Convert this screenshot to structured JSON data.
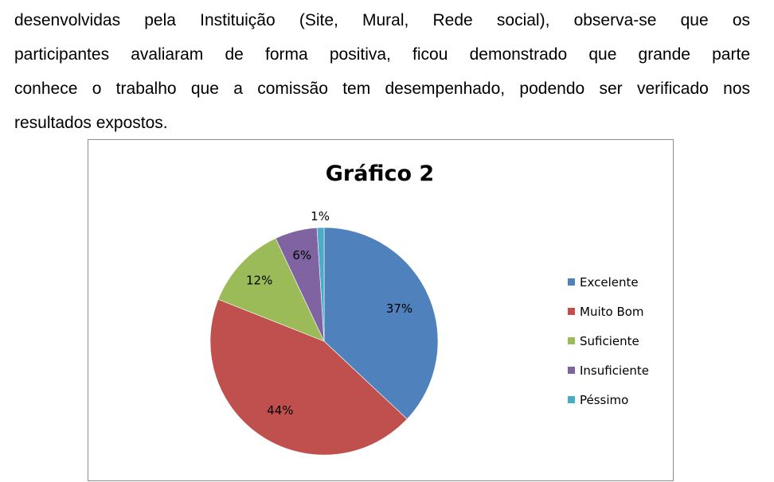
{
  "paragraph": {
    "lines": [
      "desenvolvidas pela Instituição (Site, Mural, Rede social), observa-se que os",
      "participantes avaliaram de forma positiva, ficou demonstrado que grande parte",
      "conhece o trabalho que a comissão tem desempenhado, podendo ser verificado nos",
      "resultados expostos."
    ]
  },
  "chart_data": {
    "type": "pie",
    "title": "Gráfico 2",
    "categories": [
      "Excelente",
      "Muito Bom",
      "Suficiente",
      "Insuficiente",
      "Péssimo"
    ],
    "values": [
      37,
      44,
      12,
      6,
      1
    ],
    "data_labels": [
      "37%",
      "44%",
      "12%",
      "6%",
      "1%"
    ],
    "colors": [
      "#4f81bd",
      "#c0504d",
      "#9bbb59",
      "#8064a2",
      "#4bacc6"
    ],
    "legend_position": "right",
    "start_angle": "top, clockwise"
  }
}
